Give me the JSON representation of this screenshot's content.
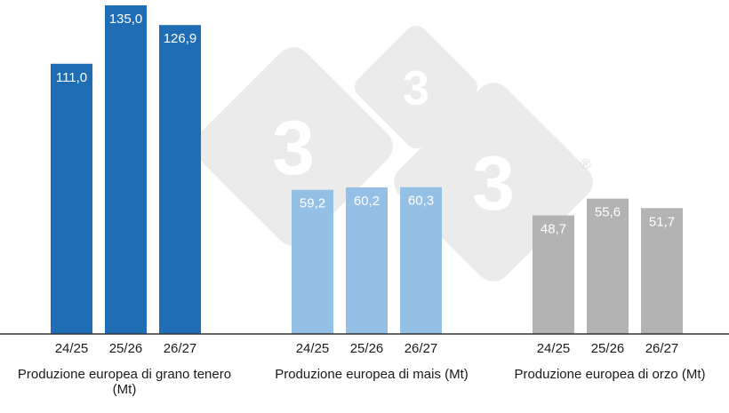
{
  "chart_data": [
    {
      "type": "bar",
      "categories": [
        "24/25",
        "25/26",
        "26/27"
      ],
      "values": [
        111.0,
        135.0,
        126.9
      ],
      "value_labels": [
        "111,0",
        "135,0",
        "126,9"
      ],
      "xlabel": "Produzione europea di grano tenero (Mt)",
      "color": "#1f6db4"
    },
    {
      "type": "bar",
      "categories": [
        "24/25",
        "25/26",
        "26/27"
      ],
      "values": [
        59.2,
        60.2,
        60.3
      ],
      "value_labels": [
        "59,2",
        "60,2",
        "60,3"
      ],
      "xlabel": "Produzione europea di mais (Mt)",
      "color": "#95c0e6"
    },
    {
      "type": "bar",
      "categories": [
        "24/25",
        "25/26",
        "26/27"
      ],
      "values": [
        48.7,
        55.6,
        51.7
      ],
      "value_labels": [
        "48,7",
        "55,6",
        "51,7"
      ],
      "xlabel": "Produzione europea di orzo (Mt)",
      "color": "#b3b3b3"
    }
  ],
  "watermark": {
    "text": "3",
    "mark": "®",
    "color": "#ebebeb"
  }
}
